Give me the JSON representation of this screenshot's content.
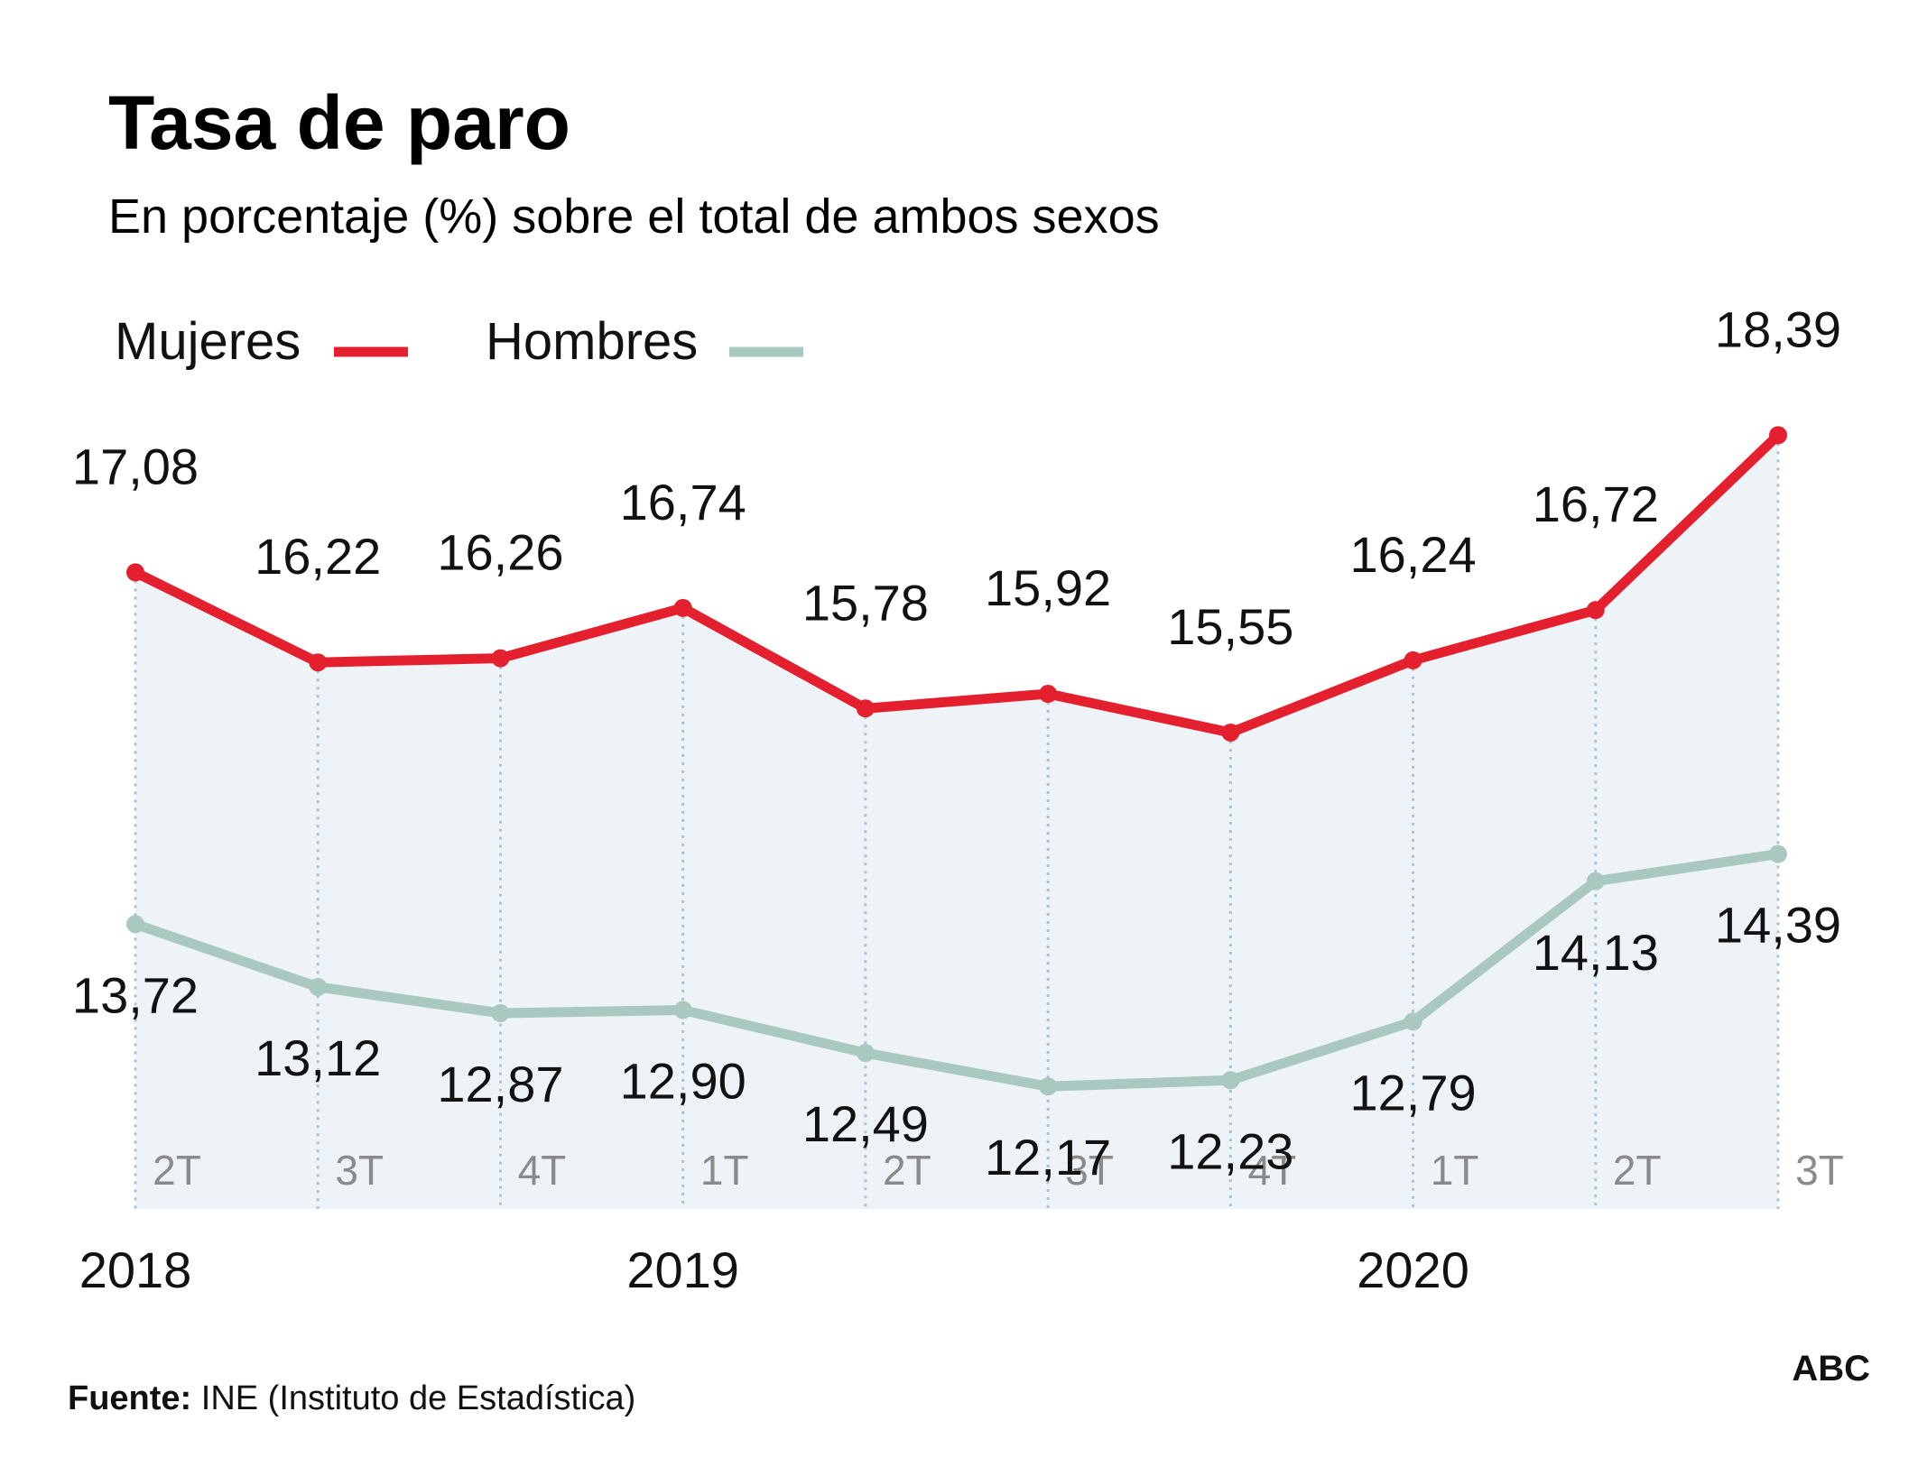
{
  "chart_data": {
    "type": "line",
    "title": "Tasa de paro",
    "subtitle": "En porcentaje (%) sobre el total de ambos sexos",
    "categories": [
      "2T",
      "3T",
      "4T",
      "1T",
      "2T",
      "3T",
      "4T",
      "1T",
      "2T",
      "3T"
    ],
    "years": [
      {
        "label": "2018",
        "index": 0
      },
      {
        "label": "2019",
        "index": 3
      },
      {
        "label": "2020",
        "index": 7
      }
    ],
    "series": [
      {
        "name": "Mujeres",
        "color": "#e4202f",
        "values": [
          17.08,
          16.22,
          16.26,
          16.74,
          15.78,
          15.92,
          15.55,
          16.24,
          16.72,
          18.39
        ],
        "labels": [
          "17,08",
          "16,22",
          "16,26",
          "16,74",
          "15,78",
          "15,92",
          "15,55",
          "16,24",
          "16,72",
          "18,39"
        ]
      },
      {
        "name": "Hombres",
        "color": "#a9c8c0",
        "values": [
          13.72,
          13.12,
          12.87,
          12.9,
          12.49,
          12.17,
          12.23,
          12.79,
          14.13,
          14.39
        ],
        "labels": [
          "13,72",
          "13,12",
          "12,87",
          "12,90",
          "12,49",
          "12,17",
          "12,23",
          "12,79",
          "14,13",
          "14,39"
        ]
      }
    ],
    "ylim": [
      11.0,
      18.6
    ],
    "area_color": "#eef3f8",
    "gridline_color": "#a9c4d6",
    "grid": "vertical-dotted",
    "legend": "top-left"
  },
  "footer": {
    "source_label": "Fuente:",
    "source_text": " INE (Instituto de Estadística)",
    "brand": "ABC"
  }
}
